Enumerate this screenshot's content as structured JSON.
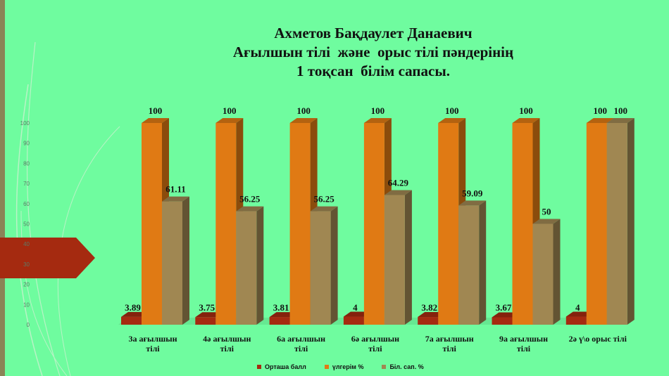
{
  "title_lines": [
    "Ахметов Бақдаулет Данаевич",
    "Ағылшын тілі  және  орыс тілі пәндерінің",
    "1 тоқсан  білім сапасы."
  ],
  "colors": {
    "background": "#6ffc9f",
    "series": [
      "#a52a10",
      "#e07a14",
      "#a08752"
    ],
    "arrow": "#a52a10",
    "left_panel": "#8a8457"
  },
  "chart_data": {
    "type": "bar",
    "three_d": true,
    "categories": [
      [
        "3а ағылшын",
        "тілі"
      ],
      [
        "4ә ағылшын",
        "тілі"
      ],
      [
        "6а ағылшын",
        "тілі"
      ],
      [
        "6ә ағылшын",
        "тілі"
      ],
      [
        "7а ағылшын",
        "тілі"
      ],
      [
        "9а ағылшын",
        "тілі"
      ],
      [
        "2ә ү\\о орыс тілі"
      ]
    ],
    "series": [
      {
        "name": "Орташа балл",
        "values": [
          3.89,
          3.75,
          3.81,
          4,
          3.82,
          3.67,
          4
        ],
        "labels": [
          "3.89",
          "3.75",
          "3.81",
          "4",
          "3.82",
          "3.67",
          "4"
        ]
      },
      {
        "name": "үлгерім %",
        "values": [
          100,
          100,
          100,
          100,
          100,
          100,
          100
        ],
        "labels": [
          "100",
          "100",
          "100",
          "100",
          "100",
          "100",
          "100"
        ]
      },
      {
        "name": "Біл. сап. %",
        "values": [
          61.11,
          56.25,
          56.25,
          64.29,
          59.09,
          50,
          100
        ],
        "labels": [
          "61.11",
          "56.25",
          "56.25",
          "64.29",
          "59.09",
          "50",
          "100"
        ]
      }
    ],
    "yticks": [
      "0",
      "10",
      "20",
      "30",
      "40",
      "50",
      "60",
      "70",
      "80",
      "90",
      "100"
    ],
    "ylim": [
      0,
      100
    ],
    "legend_position": "bottom"
  }
}
